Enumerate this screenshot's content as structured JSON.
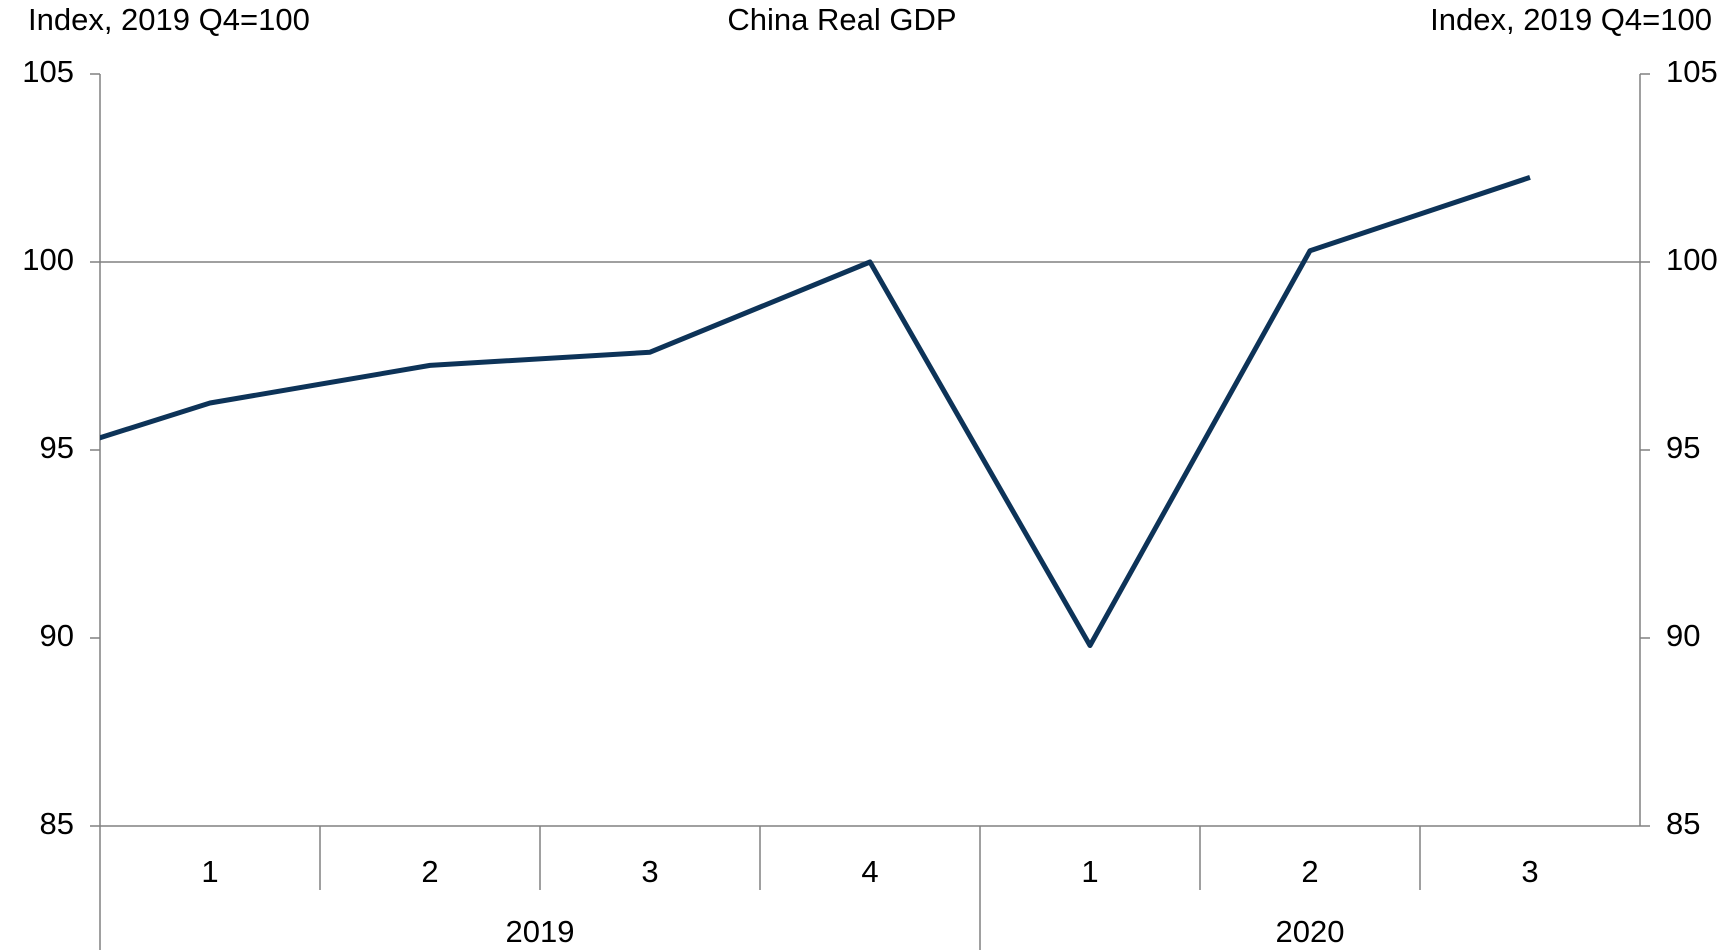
{
  "chart_data": {
    "type": "line",
    "title": "China Real GDP",
    "y_axis_label": "Index, 2019 Q4=100",
    "y2_axis_label": "Index, 2019 Q4=100",
    "categories": [
      null,
      "1",
      "2",
      "3",
      "4",
      "1",
      "2",
      "3"
    ],
    "category_years": [
      null,
      "2019",
      "2019",
      "2019",
      "2019",
      "2020",
      "2020",
      "2020"
    ],
    "series": [
      {
        "name": "China Real GDP",
        "color": "#0d3358",
        "values": [
          94.4,
          96.25,
          97.25,
          97.6,
          100,
          89.8,
          100.3,
          102.25
        ]
      }
    ],
    "ylim": [
      85,
      105
    ],
    "yticks": [
      85,
      90,
      95,
      100,
      105
    ],
    "y2lim": [
      85,
      105
    ],
    "y2ticks": [
      85,
      90,
      95,
      100,
      105
    ],
    "reference_line": 100
  }
}
